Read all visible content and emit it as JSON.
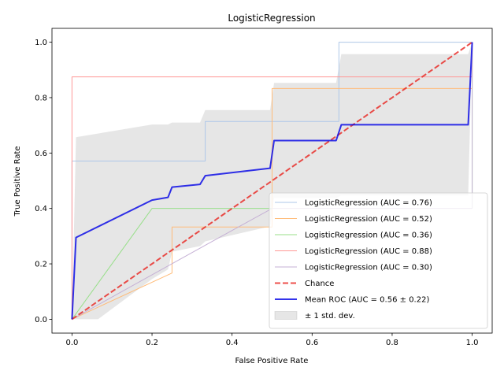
{
  "chart_data": {
    "type": "line",
    "title": "LogisticRegression",
    "xlabel": "False Positive Rate",
    "ylabel": "True Positive Rate",
    "xlim": [
      -0.05,
      1.05
    ],
    "ylim": [
      -0.05,
      1.05
    ],
    "xticks": [
      0.0,
      0.2,
      0.4,
      0.6,
      0.8,
      1.0
    ],
    "yticks": [
      0.0,
      0.2,
      0.4,
      0.6,
      0.8,
      1.0
    ],
    "xtick_labels": [
      "0.0",
      "0.2",
      "0.4",
      "0.6",
      "0.8",
      "1.0"
    ],
    "ytick_labels": [
      "0.0",
      "0.2",
      "0.4",
      "0.6",
      "0.8",
      "1.0"
    ],
    "grid": false,
    "legend_position": "lower-right",
    "series": [
      {
        "name": "LogisticRegression (AUC = 0.76)",
        "color": "#aec7e8",
        "style": "solid",
        "points": [
          [
            0,
            0
          ],
          [
            0,
            0.571
          ],
          [
            0.333,
            0.571
          ],
          [
            0.333,
            0.714
          ],
          [
            0.667,
            0.714
          ],
          [
            0.667,
            1.0
          ],
          [
            1.0,
            1.0
          ]
        ]
      },
      {
        "name": "LogisticRegression (AUC = 0.52)",
        "color": "#ffbb78",
        "style": "solid",
        "points": [
          [
            0,
            0
          ],
          [
            0.25,
            0.167
          ],
          [
            0.25,
            0.333
          ],
          [
            0.5,
            0.333
          ],
          [
            0.5,
            0.833
          ],
          [
            1.0,
            0.833
          ],
          [
            1.0,
            1.0
          ]
        ]
      },
      {
        "name": "LogisticRegression (AUC = 0.36)",
        "color": "#98df8a",
        "style": "solid",
        "points": [
          [
            0,
            0
          ],
          [
            0.2,
            0.4
          ],
          [
            1.0,
            0.4
          ],
          [
            1.0,
            1.0
          ]
        ]
      },
      {
        "name": "LogisticRegression (AUC = 0.88)",
        "color": "#ff9896",
        "style": "solid",
        "points": [
          [
            0,
            0
          ],
          [
            0,
            0.875
          ],
          [
            1.0,
            0.875
          ],
          [
            1.0,
            1.0
          ]
        ]
      },
      {
        "name": "LogisticRegression (AUC = 0.30)",
        "color": "#c5b0d5",
        "style": "solid",
        "points": [
          [
            0,
            0
          ],
          [
            0.333,
            0.267
          ],
          [
            0.5,
            0.4
          ],
          [
            1.0,
            0.4
          ],
          [
            1.0,
            1.0
          ]
        ]
      },
      {
        "name": "Chance",
        "color": "#e8231e",
        "style": "dashed",
        "points": [
          [
            0,
            0
          ],
          [
            1.0,
            1.0
          ]
        ]
      },
      {
        "name": "Mean ROC (AUC = 0.56 ± 0.22)",
        "color": "#0000e6",
        "style": "solid",
        "points": [
          [
            0,
            0
          ],
          [
            0.01,
            0.295
          ],
          [
            0.2,
            0.43
          ],
          [
            0.24,
            0.44
          ],
          [
            0.25,
            0.477
          ],
          [
            0.32,
            0.487
          ],
          [
            0.333,
            0.518
          ],
          [
            0.495,
            0.545
          ],
          [
            0.505,
            0.645
          ],
          [
            0.66,
            0.645
          ],
          [
            0.673,
            0.702
          ],
          [
            0.99,
            0.702
          ],
          [
            1.0,
            1.0
          ]
        ]
      }
    ],
    "band": {
      "name": "± 1 std. dev.",
      "color": "#808080",
      "upper": [
        [
          0,
          0
        ],
        [
          0.01,
          0.657
        ],
        [
          0.2,
          0.703
        ],
        [
          0.24,
          0.703
        ],
        [
          0.25,
          0.71
        ],
        [
          0.32,
          0.71
        ],
        [
          0.333,
          0.755
        ],
        [
          0.495,
          0.755
        ],
        [
          0.505,
          0.853
        ],
        [
          0.66,
          0.853
        ],
        [
          0.673,
          0.957
        ],
        [
          0.99,
          0.957
        ],
        [
          1.0,
          1.0
        ]
      ],
      "lower": [
        [
          0,
          0
        ],
        [
          0.01,
          0.0
        ],
        [
          0.065,
          0.0
        ],
        [
          0.2,
          0.145
        ],
        [
          0.24,
          0.18
        ],
        [
          0.25,
          0.244
        ],
        [
          0.32,
          0.264
        ],
        [
          0.333,
          0.281
        ],
        [
          0.495,
          0.335
        ],
        [
          0.505,
          0.437
        ],
        [
          0.66,
          0.437
        ],
        [
          0.673,
          0.447
        ],
        [
          0.99,
          0.447
        ],
        [
          1.0,
          1.0
        ]
      ]
    }
  }
}
